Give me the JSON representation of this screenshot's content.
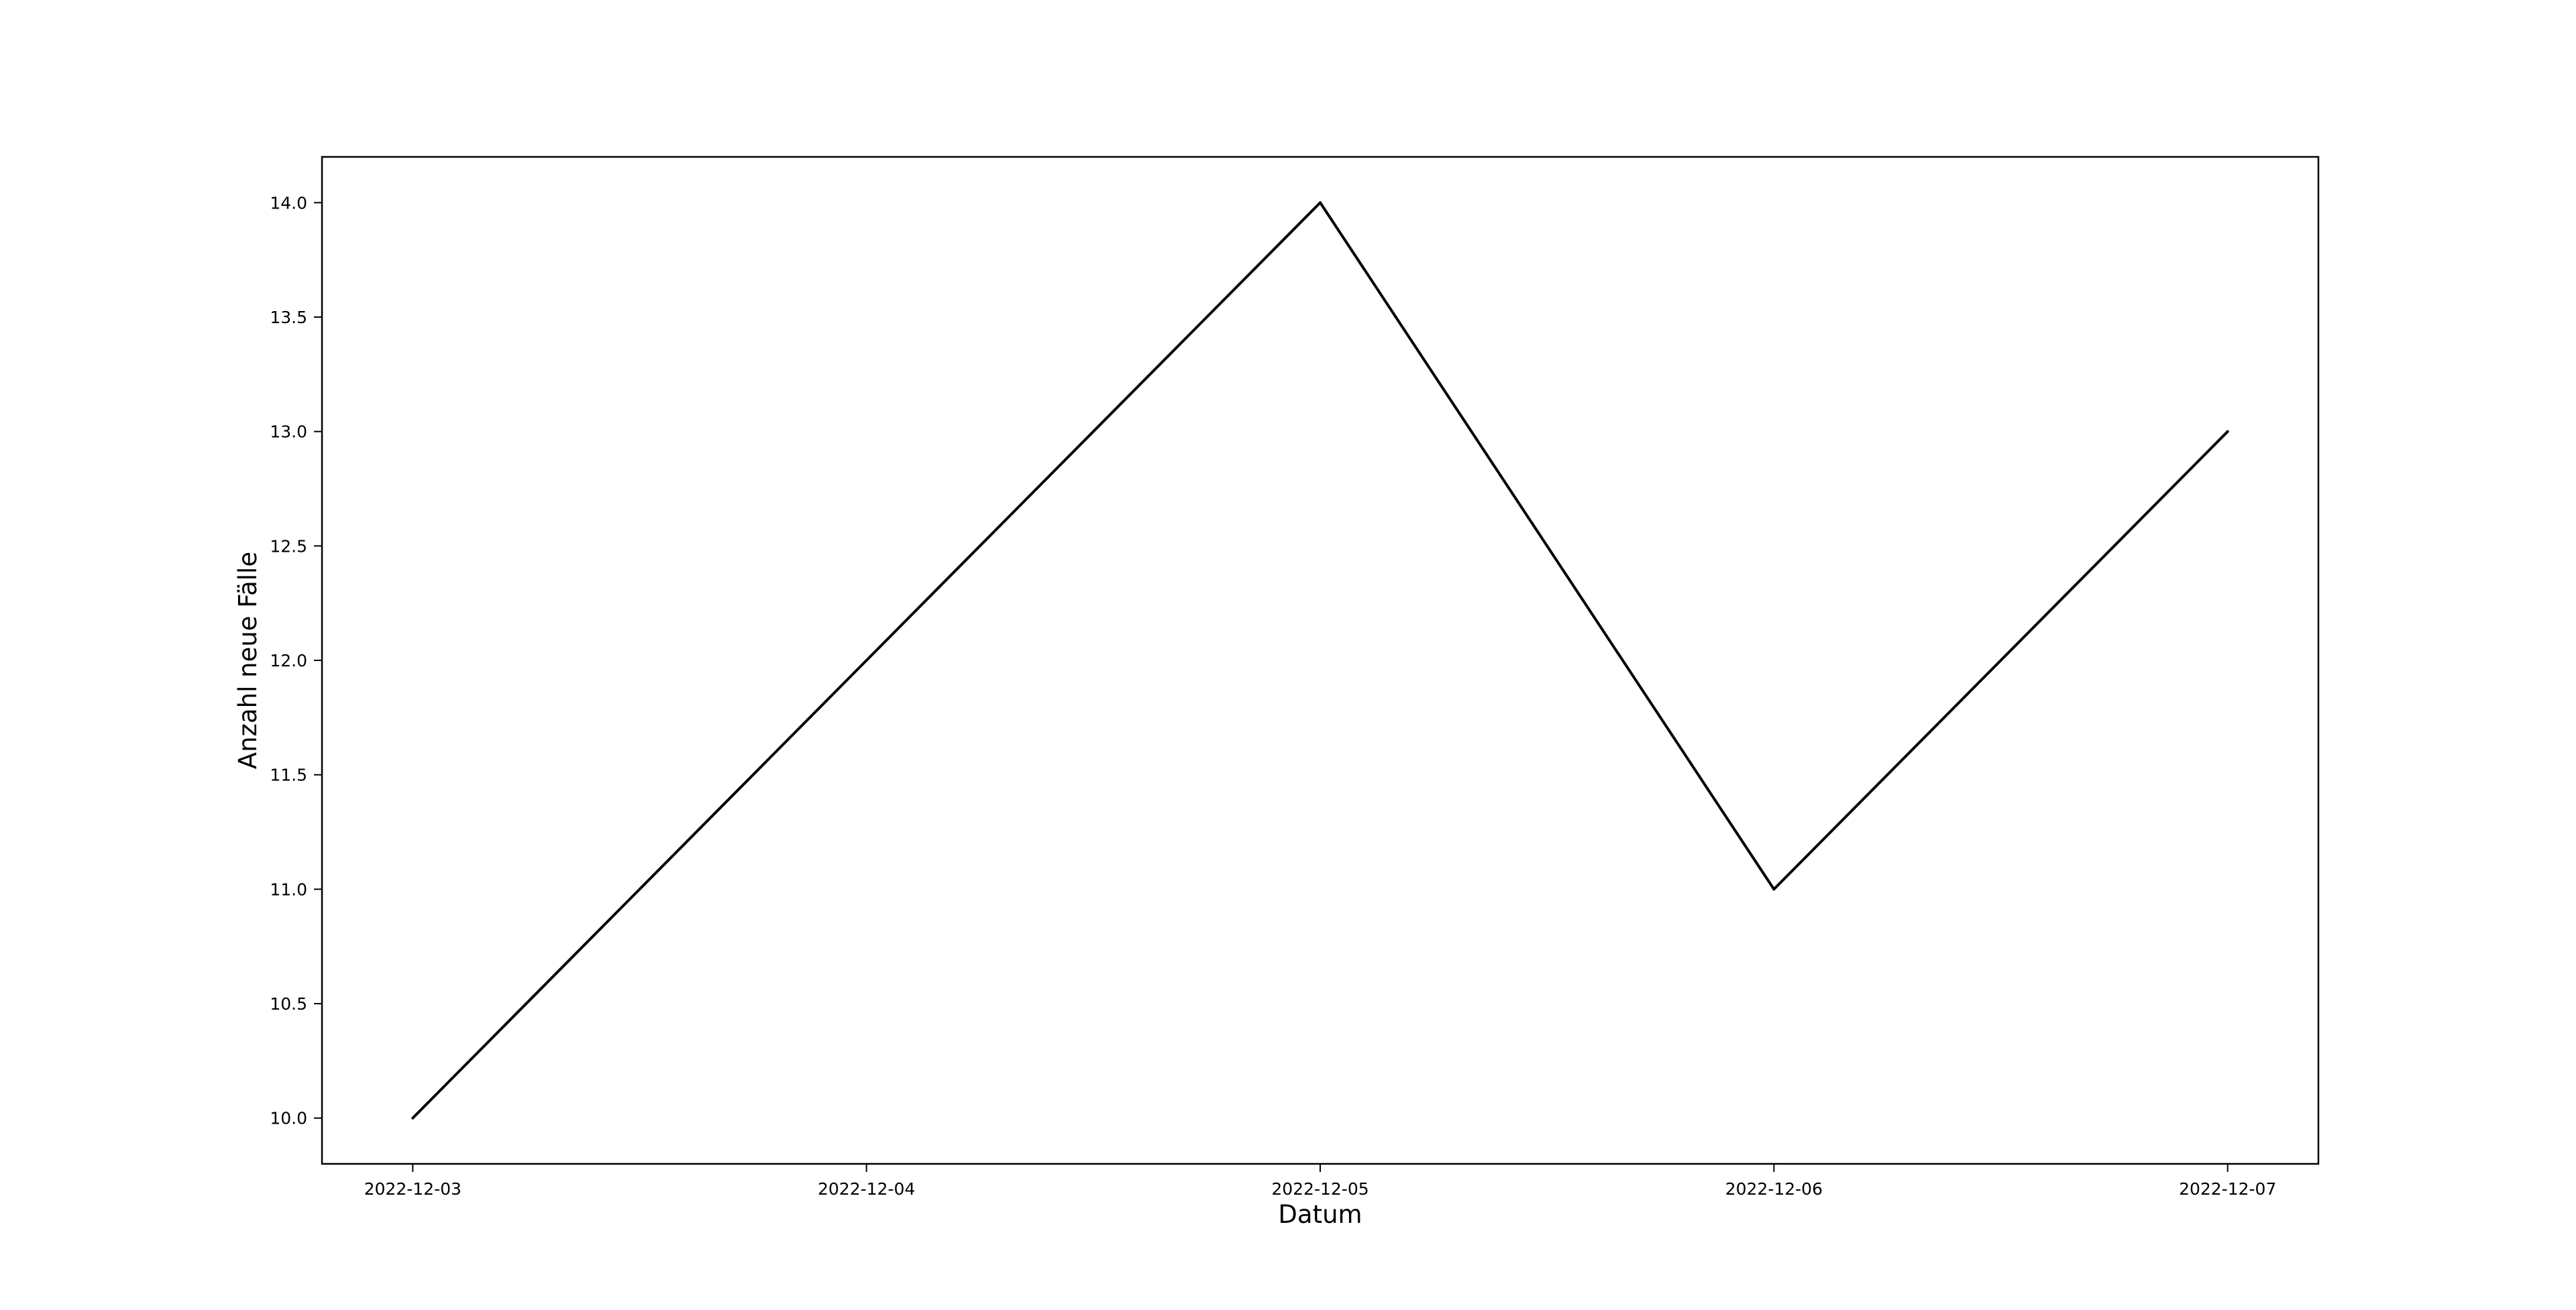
{
  "chart_data": {
    "type": "line",
    "title": "",
    "xlabel": "Datum",
    "ylabel": "Anzahl neue Fälle",
    "x": [
      "2022-12-03",
      "2022-12-04",
      "2022-12-05",
      "2022-12-06",
      "2022-12-07"
    ],
    "series": [
      {
        "values": [
          10,
          12,
          14,
          11,
          13
        ],
        "color": "#000000"
      }
    ],
    "x_ticks": [
      "2022-12-03",
      "2022-12-04",
      "2022-12-05",
      "2022-12-06",
      "2022-12-07"
    ],
    "y_ticks": [
      "10.0",
      "10.5",
      "11.0",
      "11.5",
      "12.0",
      "12.5",
      "13.0",
      "13.5",
      "14.0"
    ],
    "xlim": [
      "2022-12-02T19:12",
      "2022-12-07T04:48"
    ],
    "ylim": [
      9.8,
      14.2
    ],
    "grid": false,
    "legend": "none"
  }
}
